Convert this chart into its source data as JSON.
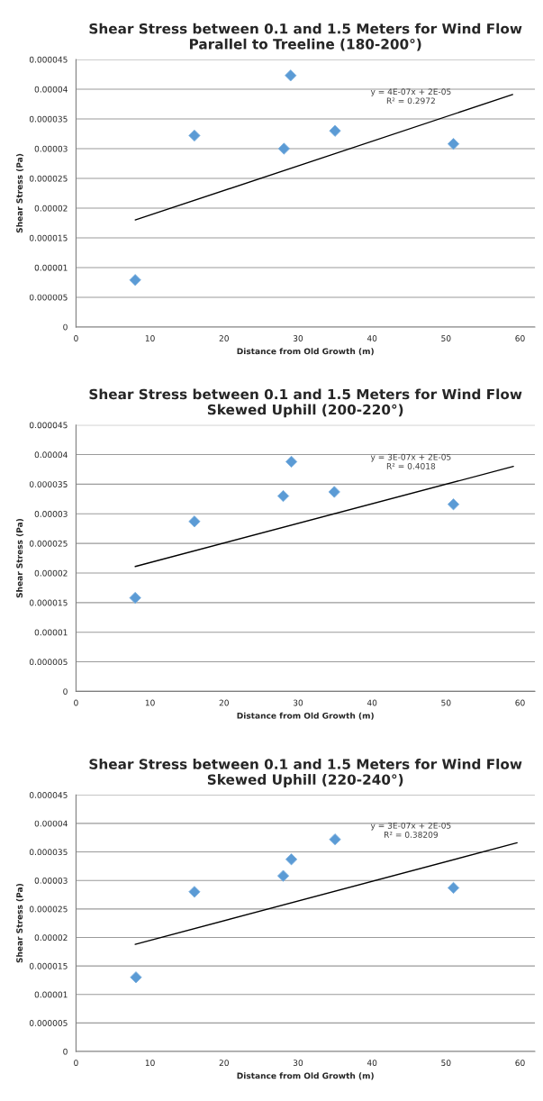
{
  "chart_data": [
    {
      "type": "scatter",
      "title": "Shear Stress between 0.1 and 1.5 Meters for Wind Flow Parallel to Treeline (180-200°)",
      "xlabel": "Distance from Old Growth (m)",
      "ylabel": "Shear Stress (Pa)",
      "marker": "diamond",
      "grid": "y",
      "xlim": [
        0,
        62
      ],
      "xticks": [
        0,
        10,
        20,
        30,
        40,
        50,
        60
      ],
      "ylim": [
        0,
        4.5e-05
      ],
      "yticks": [
        {
          "value": 0,
          "label": "0"
        },
        {
          "value": 5e-06,
          "label": "0.000005"
        },
        {
          "value": 1e-05,
          "label": "0.00001"
        },
        {
          "value": 1.5e-05,
          "label": "0.000015"
        },
        {
          "value": 2e-05,
          "label": "0.00002"
        },
        {
          "value": 2.5e-05,
          "label": "0.000025"
        },
        {
          "value": 3e-05,
          "label": "0.00003"
        },
        {
          "value": 3.5e-05,
          "label": "0.000035"
        },
        {
          "value": 4e-05,
          "label": "0.00004"
        },
        {
          "value": 4.5e-05,
          "label": "0.000045"
        }
      ],
      "annotations": [
        "y = 4E-07x + 2E-05\nR² = 0.2972"
      ],
      "series": [
        {
          "color": "#5b9bd5",
          "x": [
            8.0,
            16.0,
            28.1,
            29.0,
            35.0,
            51.0
          ],
          "values": [
            7.9e-06,
            3.22e-05,
            3e-05,
            4.23e-05,
            3.3e-05,
            3.08e-05
          ]
        },
        {
          "type": "line",
          "color": "#000000",
          "marker": "none",
          "x": [
            8.0,
            59.0
          ],
          "values": [
            1.8e-05,
            3.91e-05
          ]
        }
      ]
    },
    {
      "type": "scatter",
      "title": "Shear Stress between 0.1 and 1.5 Meters for Wind Flow Skewed Uphill (200-220°)",
      "xlabel": "Distance from Old Growth (m)",
      "ylabel": "Shear Stress (Pa)",
      "marker": "diamond",
      "grid": "y",
      "xlim": [
        0,
        62
      ],
      "xticks": [
        0,
        10,
        20,
        30,
        40,
        50,
        60
      ],
      "ylim": [
        0,
        4.5e-05
      ],
      "yticks": [
        {
          "value": 0,
          "label": "0"
        },
        {
          "value": 5e-06,
          "label": "0.000005"
        },
        {
          "value": 1e-05,
          "label": "0.00001"
        },
        {
          "value": 1.5e-05,
          "label": "0.000015"
        },
        {
          "value": 2e-05,
          "label": "0.00002"
        },
        {
          "value": 2.5e-05,
          "label": "0.000025"
        },
        {
          "value": 3e-05,
          "label": "0.00003"
        },
        {
          "value": 3.5e-05,
          "label": "0.000035"
        },
        {
          "value": 4e-05,
          "label": "0.00004"
        },
        {
          "value": 4.5e-05,
          "label": "0.000045"
        }
      ],
      "annotations": [
        "y = 3E-07x + 2E-05\nR² = 0.4018"
      ],
      "series": [
        {
          "color": "#5b9bd5",
          "x": [
            8.0,
            16.0,
            28.0,
            29.1,
            34.9,
            51.0
          ],
          "values": [
            1.58e-05,
            2.87e-05,
            3.3e-05,
            3.88e-05,
            3.37e-05,
            3.16e-05
          ]
        },
        {
          "type": "line",
          "color": "#000000",
          "marker": "none",
          "x": [
            8.0,
            59.1
          ],
          "values": [
            2.11e-05,
            3.8e-05
          ]
        }
      ]
    },
    {
      "type": "scatter",
      "title": "Shear Stress between 0.1 and 1.5 Meters for Wind Flow Skewed Uphill (220-240°)",
      "xlabel": "Distance from Old Growth (m)",
      "ylabel": "Shear Stress (Pa)",
      "marker": "diamond",
      "grid": "y",
      "xlim": [
        0,
        62
      ],
      "xticks": [
        0,
        10,
        20,
        30,
        40,
        50,
        60
      ],
      "ylim": [
        0,
        4.5e-05
      ],
      "yticks": [
        {
          "value": 0,
          "label": "0"
        },
        {
          "value": 5e-06,
          "label": "0.000005"
        },
        {
          "value": 1e-05,
          "label": "0.00001"
        },
        {
          "value": 1.5e-05,
          "label": "0.000015"
        },
        {
          "value": 2e-05,
          "label": "0.00002"
        },
        {
          "value": 2.5e-05,
          "label": "0.000025"
        },
        {
          "value": 3e-05,
          "label": "0.00003"
        },
        {
          "value": 3.5e-05,
          "label": "0.000035"
        },
        {
          "value": 4e-05,
          "label": "0.00004"
        },
        {
          "value": 4.5e-05,
          "label": "0.000045"
        }
      ],
      "annotations": [
        "y = 3E-07x + 2E-05\nR² = 0.38209"
      ],
      "series": [
        {
          "color": "#5b9bd5",
          "x": [
            8.1,
            16.0,
            28.0,
            29.1,
            35.0,
            51.0
          ],
          "values": [
            1.3e-05,
            2.8e-05,
            3.08e-05,
            3.37e-05,
            3.72e-05,
            2.87e-05
          ]
        },
        {
          "type": "line",
          "color": "#000000",
          "marker": "none",
          "x": [
            8.0,
            59.6
          ],
          "values": [
            1.88e-05,
            3.66e-05
          ]
        }
      ]
    }
  ]
}
